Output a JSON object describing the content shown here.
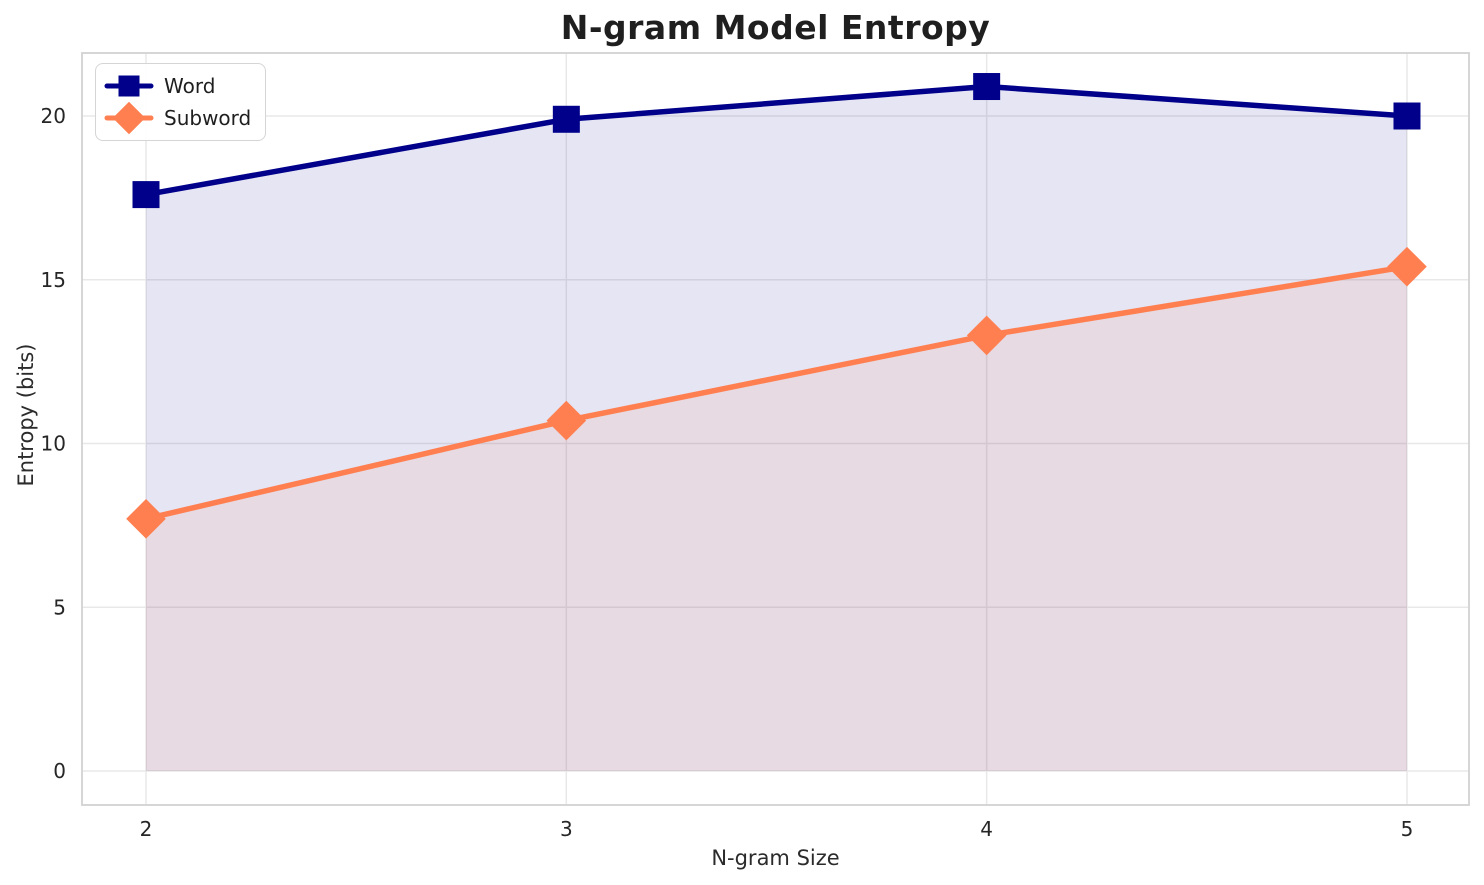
{
  "chart_data": {
    "type": "line",
    "title": "N-gram Model Entropy",
    "xlabel": "N-gram Size",
    "ylabel": "Entropy (bits)",
    "x": [
      2,
      3,
      4,
      5
    ],
    "series": [
      {
        "name": "Word",
        "values": [
          17.6,
          19.9,
          20.9,
          20.0
        ],
        "color": "#00008B",
        "marker": "square",
        "fill_to_zero": true,
        "fill_opacity": 0.1
      },
      {
        "name": "Subword",
        "values": [
          7.7,
          10.7,
          13.3,
          15.4
        ],
        "color": "#FF7F50",
        "marker": "diamond",
        "fill_to_zero": true,
        "fill_opacity": 0.1
      }
    ],
    "xticks": [
      2,
      3,
      4,
      5
    ],
    "yticks": [
      0,
      5,
      10,
      15,
      20
    ],
    "xlim": [
      1.85,
      5.15
    ],
    "ylim": [
      -1.0,
      21.9
    ],
    "grid": true,
    "grid_color": "#e8e8e8",
    "spine_color": "#d2d2d2",
    "tick_label_color": "#262626",
    "legend_position": "upper left"
  }
}
